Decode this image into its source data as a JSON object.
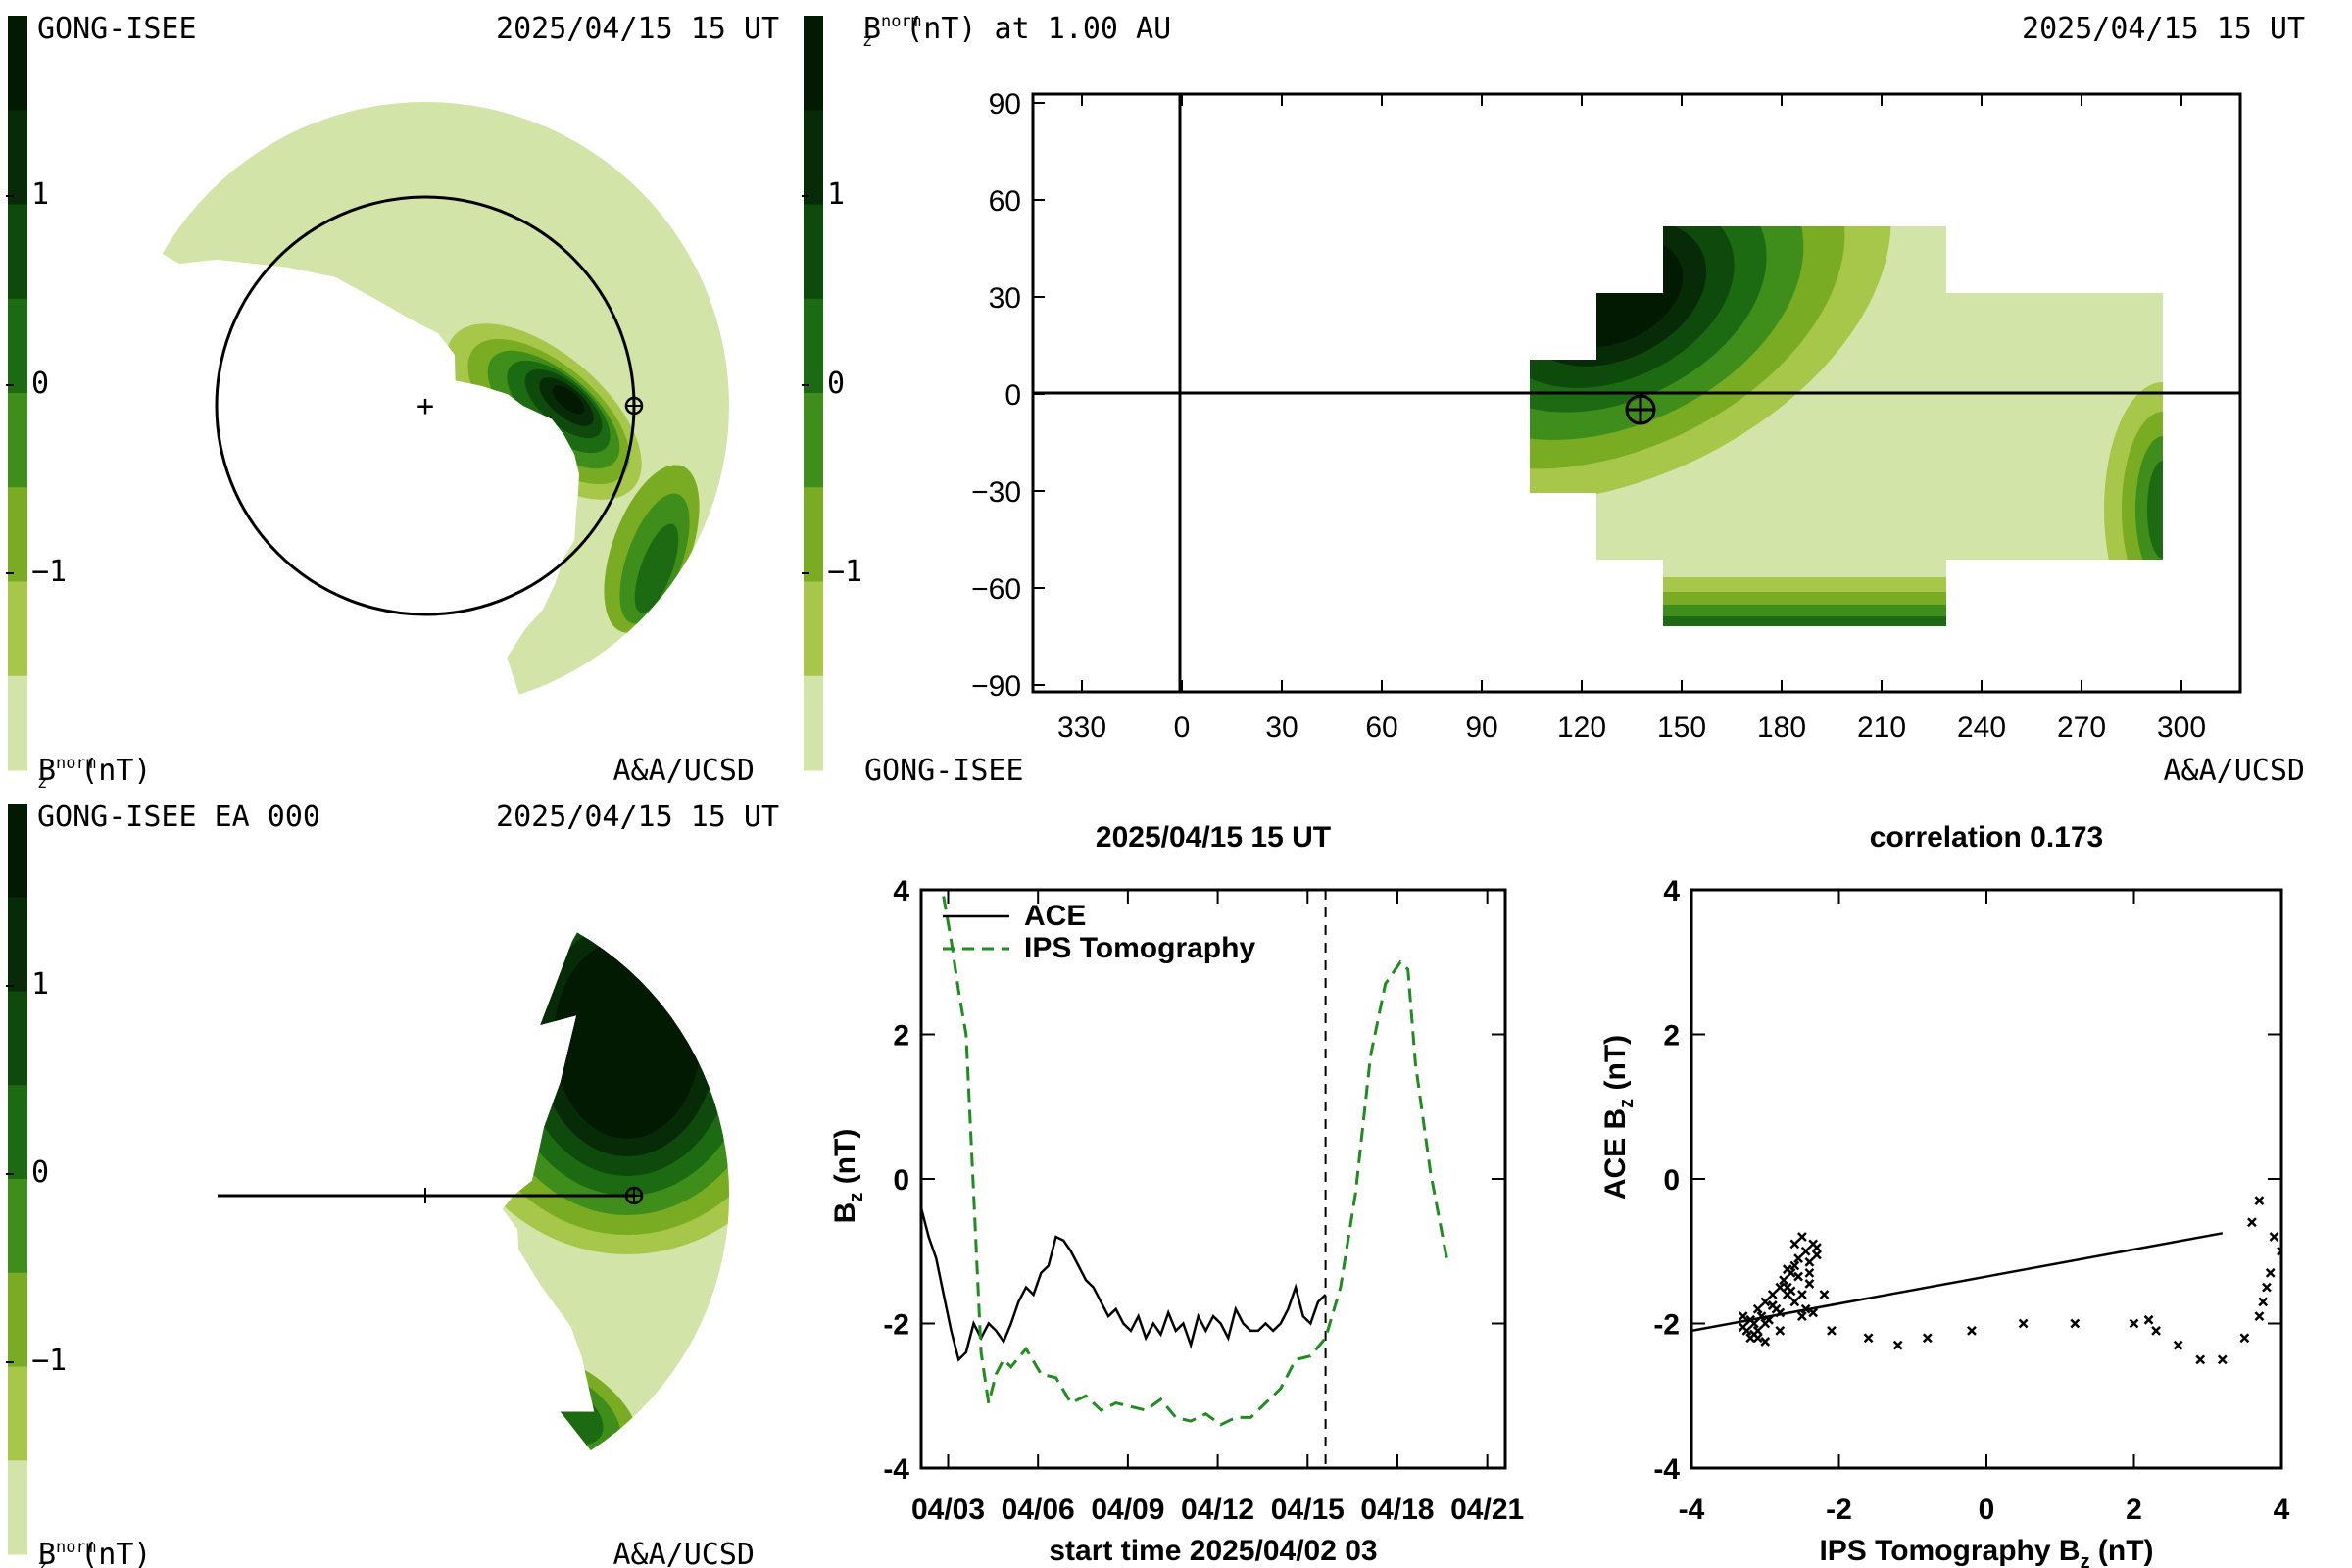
{
  "colors": {
    "scale": [
      "#d2e4a7",
      "#a6c74a",
      "#7aac23",
      "#3f8e1b",
      "#1c6a12",
      "#0d4a0b",
      "#062b06",
      "#021a02"
    ],
    "dashed_series": "#1f8c1f",
    "line_series": "#000000"
  },
  "panel_tl": {
    "source": "GONG-ISEE",
    "timestamp": "2025/04/15 15 UT",
    "colorbar_label": "B",
    "colorbar_sub": "z",
    "colorbar_sup": "norm",
    "colorbar_unit": "(nT)",
    "credit": "A&A/UCSD",
    "colorbar_ticks": [
      "1",
      "0",
      "−1"
    ]
  },
  "panel_tr": {
    "title_label": "B",
    "title_sub": "z",
    "title_sup": "norm",
    "title_rest": "(nT) at 1.00 AU",
    "timestamp": "2025/04/15 15 UT",
    "source": "GONG-ISEE",
    "credit": "A&A/UCSD",
    "colorbar_ticks": [
      "1",
      "0",
      "−1"
    ],
    "x_ticks": [
      "330",
      "0",
      "30",
      "60",
      "90",
      "120",
      "150",
      "180",
      "210",
      "240",
      "270",
      "300"
    ],
    "y_ticks": [
      "90",
      "60",
      "30",
      "0",
      "−30",
      "−60",
      "−90"
    ]
  },
  "panel_bl": {
    "source": "GONG-ISEE EA 000",
    "timestamp": "2025/04/15 15 UT",
    "colorbar_label": "B",
    "colorbar_sub": "z",
    "colorbar_sup": "norm",
    "colorbar_unit": "(nT)",
    "credit": "A&A/UCSD",
    "colorbar_ticks": [
      "1",
      "0",
      "−1"
    ]
  },
  "chart_data": [
    {
      "type": "line",
      "title": "2025/04/15 15 UT",
      "xlabel": "start time 2025/04/02 03",
      "ylabel_main": "B",
      "ylabel_sub": "z",
      "ylabel_unit": " (nT)",
      "x_tick_labels": [
        "04/03",
        "04/06",
        "04/09",
        "04/12",
        "04/15",
        "04/18",
        "04/21"
      ],
      "x_tick_values": [
        0.9,
        3.9,
        6.9,
        9.9,
        12.9,
        15.9,
        18.9
      ],
      "y_tick_labels": [
        "4",
        "2",
        "0",
        "-2",
        "-4"
      ],
      "xlim": [
        0,
        19.5
      ],
      "ylim": [
        -4,
        4
      ],
      "vline_x": 13.5,
      "legend": [
        "ACE",
        "IPS Tomography"
      ],
      "series": [
        {
          "name": "ACE",
          "style": "solid",
          "x": [
            0,
            0.25,
            0.5,
            0.75,
            1.0,
            1.25,
            1.5,
            1.75,
            2.0,
            2.25,
            2.5,
            2.75,
            3.0,
            3.25,
            3.5,
            3.75,
            4.0,
            4.25,
            4.5,
            4.75,
            5.0,
            5.25,
            5.5,
            5.75,
            6.0,
            6.25,
            6.5,
            6.75,
            7.0,
            7.25,
            7.5,
            7.75,
            8.0,
            8.25,
            8.5,
            8.75,
            9.0,
            9.25,
            9.5,
            9.75,
            10.0,
            10.25,
            10.5,
            10.75,
            11.0,
            11.25,
            11.5,
            11.75,
            12.0,
            12.25,
            12.5,
            12.75,
            13.0,
            13.25,
            13.5
          ],
          "y": [
            -0.4,
            -0.8,
            -1.1,
            -1.6,
            -2.1,
            -2.5,
            -2.4,
            -2.0,
            -2.2,
            -2.0,
            -2.1,
            -2.25,
            -2.0,
            -1.7,
            -1.5,
            -1.6,
            -1.3,
            -1.2,
            -0.8,
            -0.85,
            -1.0,
            -1.2,
            -1.4,
            -1.5,
            -1.7,
            -1.9,
            -1.8,
            -2.0,
            -2.1,
            -1.9,
            -2.2,
            -2.0,
            -2.15,
            -1.85,
            -2.1,
            -2.0,
            -2.3,
            -1.9,
            -2.1,
            -1.9,
            -2.0,
            -2.2,
            -1.8,
            -2.0,
            -2.1,
            -2.1,
            -2.0,
            -2.1,
            -2.0,
            -1.8,
            -1.5,
            -1.9,
            -2.0,
            -1.7,
            -1.6
          ]
        },
        {
          "name": "IPS Tomography",
          "style": "dashed",
          "x": [
            0.5,
            0.75,
            1.0,
            1.25,
            1.5,
            1.75,
            2.0,
            2.25,
            2.5,
            2.75,
            3.0,
            3.5,
            4.0,
            4.5,
            5.0,
            5.5,
            6.0,
            6.5,
            7.0,
            7.5,
            8.0,
            8.5,
            9.0,
            9.5,
            10.0,
            10.5,
            11.0,
            11.5,
            12.0,
            12.5,
            13.0,
            13.5,
            14.0,
            14.5,
            15.0,
            15.5,
            16.0,
            16.25,
            16.5,
            17.0,
            17.5,
            17.6
          ],
          "y": [
            4.5,
            3.9,
            3.3,
            2.6,
            2.0,
            -0.2,
            -2.4,
            -3.1,
            -2.7,
            -2.5,
            -2.6,
            -2.35,
            -2.7,
            -2.75,
            -3.1,
            -3.0,
            -3.2,
            -3.1,
            -3.15,
            -3.2,
            -3.05,
            -3.3,
            -3.35,
            -3.25,
            -3.4,
            -3.3,
            -3.3,
            -3.1,
            -2.9,
            -2.5,
            -2.45,
            -2.2,
            -1.5,
            -0.2,
            1.7,
            2.7,
            3.0,
            2.9,
            1.6,
            0.1,
            -1.0,
            -1.2
          ]
        }
      ]
    },
    {
      "type": "scatter",
      "title": "correlation 0.173",
      "xlabel_main": "IPS Tomography B",
      "xlabel_sub": "z",
      "xlabel_unit": " (nT)",
      "ylabel_main": "ACE B",
      "ylabel_sub": "z",
      "ylabel_unit": " (nT)",
      "x_tick_labels": [
        "-4",
        "-2",
        "0",
        "2",
        "4"
      ],
      "y_tick_labels": [
        "4",
        "2",
        "0",
        "-2",
        "-4"
      ],
      "xlim": [
        -4,
        4
      ],
      "ylim": [
        -4,
        4
      ],
      "fit_line": {
        "x": [
          -4,
          3.2
        ],
        "y": [
          -2.1,
          -0.75
        ]
      },
      "points": {
        "x": [
          -3.3,
          -3.25,
          -3.2,
          -3.15,
          -3.1,
          -3.2,
          -3.3,
          -3.15,
          -3.05,
          -3.0,
          -3.1,
          -2.95,
          -2.9,
          -3.0,
          -2.85,
          -2.8,
          -2.9,
          -2.75,
          -2.7,
          -2.8,
          -2.65,
          -2.6,
          -2.7,
          -2.55,
          -2.5,
          -2.6,
          -2.45,
          -2.4,
          -2.5,
          -2.35,
          -2.3,
          -2.4,
          -2.2,
          -2.6,
          -2.55,
          -2.5,
          -2.45,
          -2.35,
          -3.1,
          -3.0,
          -2.8,
          -2.9,
          -2.65,
          -2.7,
          -2.4,
          -2.3,
          -2.1,
          -1.6,
          -1.2,
          -0.8,
          -0.2,
          0.5,
          1.2,
          2.0,
          2.2,
          2.3,
          2.6,
          2.9,
          3.2,
          3.5,
          3.7,
          3.75,
          3.8,
          3.85,
          3.9,
          4.0,
          3.6,
          3.7
        ],
        "y": [
          -1.9,
          -2.1,
          -2.2,
          -2.0,
          -1.8,
          -1.95,
          -2.05,
          -2.15,
          -1.9,
          -1.7,
          -2.1,
          -1.95,
          -1.6,
          -2.0,
          -1.8,
          -1.5,
          -1.75,
          -1.4,
          -1.6,
          -1.85,
          -1.3,
          -1.2,
          -1.5,
          -1.1,
          -0.8,
          -0.9,
          -1.0,
          -1.3,
          -1.6,
          -0.9,
          -1.05,
          -1.45,
          -1.6,
          -1.7,
          -1.35,
          -1.9,
          -1.8,
          -1.85,
          -2.2,
          -2.25,
          -2.1,
          -1.75,
          -1.55,
          -1.25,
          -1.15,
          -0.95,
          -2.1,
          -2.2,
          -2.3,
          -2.2,
          -2.1,
          -2.0,
          -2.0,
          -2.0,
          -1.95,
          -2.1,
          -2.3,
          -2.5,
          -2.5,
          -2.2,
          -1.9,
          -1.7,
          -1.5,
          -1.3,
          -0.8,
          -1.0,
          -0.6,
          -0.3
        ]
      }
    }
  ]
}
